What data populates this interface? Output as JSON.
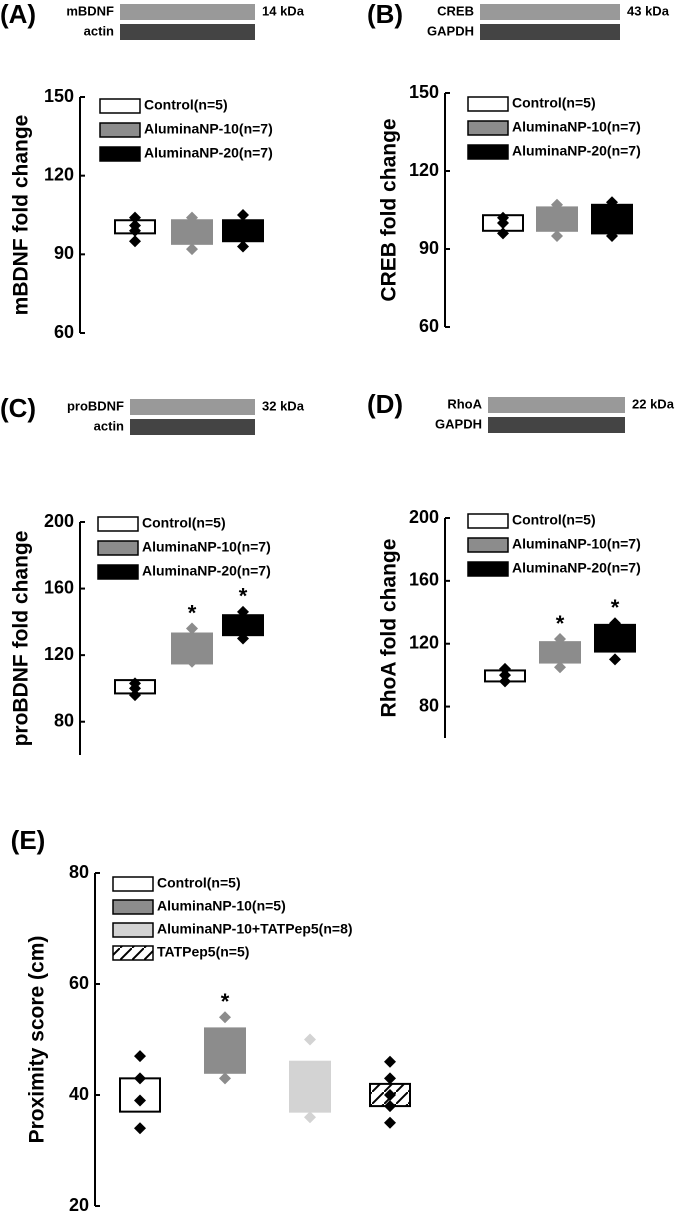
{
  "chart_data": [
    {
      "type": "box",
      "panel": "(A)",
      "blot_labels": [
        "mBDNF",
        "actin"
      ],
      "blot_size": "14 kDa",
      "y_label": "mBDNF fold change",
      "ylim": [
        60,
        150
      ],
      "yticks": [
        60,
        90,
        120,
        150
      ],
      "series": [
        {
          "name": "Control(n=5)",
          "color": "#ffffff",
          "point_color": "#000000",
          "box": [
            98,
            103
          ],
          "points": [
            95,
            99,
            101,
            104
          ]
        },
        {
          "name": "AluminaNP-10(n=7)",
          "color": "#8c8c8c",
          "point_color": "#8c8c8c",
          "box": [
            94,
            103
          ],
          "points": [
            92,
            96,
            100,
            104
          ]
        },
        {
          "name": "AluminaNP-20(n=7)",
          "color": "#000000",
          "point_color": "#000000",
          "box": [
            95,
            103
          ],
          "points": [
            93,
            96,
            101,
            105
          ]
        }
      ]
    },
    {
      "type": "box",
      "panel": "(B)",
      "blot_labels": [
        "CREB",
        "GAPDH"
      ],
      "blot_size": "43 kDa",
      "y_label": "CREB fold change",
      "ylim": [
        60,
        150
      ],
      "yticks": [
        60,
        90,
        120,
        150
      ],
      "series": [
        {
          "name": "Control(n=5)",
          "color": "#ffffff",
          "point_color": "#000000",
          "box": [
            97,
            103
          ],
          "points": [
            96,
            100,
            102
          ]
        },
        {
          "name": "AluminaNP-10(n=7)",
          "color": "#8c8c8c",
          "point_color": "#8c8c8c",
          "box": [
            97,
            106
          ],
          "points": [
            95,
            107
          ]
        },
        {
          "name": "AluminaNP-20(n=7)",
          "color": "#000000",
          "point_color": "#000000",
          "box": [
            96,
            107
          ],
          "points": [
            95,
            108
          ]
        }
      ]
    },
    {
      "type": "box",
      "panel": "(C)",
      "blot_labels": [
        "proBDNF",
        "actin"
      ],
      "blot_size": "32 kDa",
      "y_label": "proBDNF fold change",
      "ylim": [
        60,
        200
      ],
      "yticks": [
        80,
        120,
        160,
        200
      ],
      "series": [
        {
          "name": "Control(n=5)",
          "color": "#ffffff",
          "point_color": "#000000",
          "box": [
            97,
            105
          ],
          "points": [
            96,
            100,
            103
          ]
        },
        {
          "name": "AluminaNP-10(n=7)",
          "color": "#8c8c8c",
          "point_color": "#8c8c8c",
          "box": [
            115,
            133
          ],
          "points": [
            116,
            125,
            136
          ],
          "annotation": "*"
        },
        {
          "name": "AluminaNP-20(n=7)",
          "color": "#000000",
          "point_color": "#000000",
          "box": [
            132,
            144
          ],
          "points": [
            130,
            140,
            146
          ],
          "annotation": "*"
        }
      ]
    },
    {
      "type": "box",
      "panel": "(D)",
      "blot_labels": [
        "RhoA",
        "GAPDH"
      ],
      "blot_size": "22 kDa",
      "y_label": "RhoA fold change",
      "ylim": [
        60,
        200
      ],
      "yticks": [
        80,
        120,
        160,
        200
      ],
      "series": [
        {
          "name": "Control(n=5)",
          "color": "#ffffff",
          "point_color": "#000000",
          "box": [
            96,
            103
          ],
          "points": [
            96,
            100,
            104
          ]
        },
        {
          "name": "AluminaNP-10(n=7)",
          "color": "#8c8c8c",
          "point_color": "#8c8c8c",
          "box": [
            108,
            121
          ],
          "points": [
            105,
            115,
            123
          ],
          "annotation": "*"
        },
        {
          "name": "AluminaNP-20(n=7)",
          "color": "#000000",
          "point_color": "#000000",
          "box": [
            115,
            132
          ],
          "points": [
            110,
            125,
            133
          ],
          "annotation": "*"
        }
      ]
    },
    {
      "type": "box",
      "panel": "(E)",
      "y_label": "Proximity score (cm)",
      "ylim": [
        20,
        80
      ],
      "yticks": [
        20,
        40,
        60,
        80
      ],
      "series": [
        {
          "name": "Control(n=5)",
          "color": "#ffffff",
          "point_color": "#000000",
          "box": [
            37,
            43
          ],
          "points": [
            34,
            39,
            43,
            47
          ]
        },
        {
          "name": "AluminaNP-10(n=5)",
          "color": "#8c8c8c",
          "point_color": "#8c8c8c",
          "box": [
            44,
            52
          ],
          "points": [
            43,
            47,
            54
          ],
          "annotation": "*"
        },
        {
          "name": "AluminaNP-10+TATPep5(n=8)",
          "color": "#d3d3d3",
          "point_color": "#d3d3d3",
          "box": [
            37,
            46
          ],
          "points": [
            36,
            41,
            50
          ]
        },
        {
          "name": "TATPep5(n=5)",
          "color": "#ffffff",
          "point_color": "#000000",
          "hatch": true,
          "box": [
            38,
            42
          ],
          "points": [
            35,
            38,
            40,
            43,
            46
          ]
        }
      ]
    }
  ]
}
